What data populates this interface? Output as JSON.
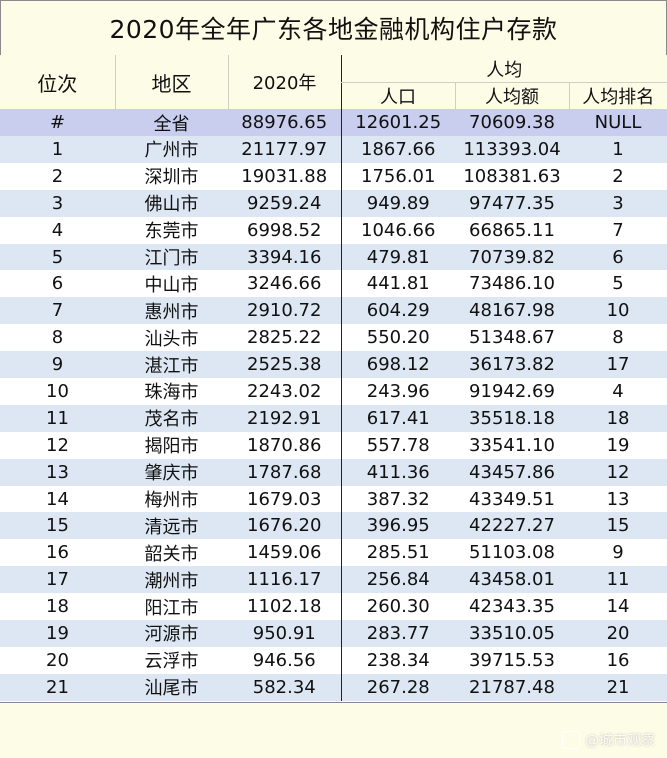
{
  "title": "2020年全年广东各地金融机构住户存款",
  "headers": {
    "rank": "位次",
    "region": "地区",
    "year": "2020年",
    "per_capita_group": "人均",
    "population": "人口",
    "per_capita_amount": "人均额",
    "per_capita_rank": "人均排名"
  },
  "total_row": {
    "rank": "#",
    "region": "全省",
    "deposit": "88976.65",
    "population": "12601.25",
    "per_capita": "70609.38",
    "per_capita_rank": "NULL"
  },
  "rows": [
    {
      "rank": "1",
      "region": "广州市",
      "deposit": "21177.97",
      "population": "1867.66",
      "per_capita": "113393.04",
      "per_capita_rank": "1"
    },
    {
      "rank": "2",
      "region": "深圳市",
      "deposit": "19031.88",
      "population": "1756.01",
      "per_capita": "108381.63",
      "per_capita_rank": "2"
    },
    {
      "rank": "3",
      "region": "佛山市",
      "deposit": "9259.24",
      "population": "949.89",
      "per_capita": "97477.35",
      "per_capita_rank": "3"
    },
    {
      "rank": "4",
      "region": "东莞市",
      "deposit": "6998.52",
      "population": "1046.66",
      "per_capita": "66865.11",
      "per_capita_rank": "7"
    },
    {
      "rank": "5",
      "region": "江门市",
      "deposit": "3394.16",
      "population": "479.81",
      "per_capita": "70739.82",
      "per_capita_rank": "6"
    },
    {
      "rank": "6",
      "region": "中山市",
      "deposit": "3246.66",
      "population": "441.81",
      "per_capita": "73486.10",
      "per_capita_rank": "5"
    },
    {
      "rank": "7",
      "region": "惠州市",
      "deposit": "2910.72",
      "population": "604.29",
      "per_capita": "48167.98",
      "per_capita_rank": "10"
    },
    {
      "rank": "8",
      "region": "汕头市",
      "deposit": "2825.22",
      "population": "550.20",
      "per_capita": "51348.67",
      "per_capita_rank": "8"
    },
    {
      "rank": "9",
      "region": "湛江市",
      "deposit": "2525.38",
      "population": "698.12",
      "per_capita": "36173.82",
      "per_capita_rank": "17"
    },
    {
      "rank": "10",
      "region": "珠海市",
      "deposit": "2243.02",
      "population": "243.96",
      "per_capita": "91942.69",
      "per_capita_rank": "4"
    },
    {
      "rank": "11",
      "region": "茂名市",
      "deposit": "2192.91",
      "population": "617.41",
      "per_capita": "35518.18",
      "per_capita_rank": "18"
    },
    {
      "rank": "12",
      "region": "揭阳市",
      "deposit": "1870.86",
      "population": "557.78",
      "per_capita": "33541.10",
      "per_capita_rank": "19"
    },
    {
      "rank": "13",
      "region": "肇庆市",
      "deposit": "1787.68",
      "population": "411.36",
      "per_capita": "43457.86",
      "per_capita_rank": "12"
    },
    {
      "rank": "14",
      "region": "梅州市",
      "deposit": "1679.03",
      "population": "387.32",
      "per_capita": "43349.51",
      "per_capita_rank": "13"
    },
    {
      "rank": "15",
      "region": "清远市",
      "deposit": "1676.20",
      "population": "396.95",
      "per_capita": "42227.27",
      "per_capita_rank": "15"
    },
    {
      "rank": "16",
      "region": "韶关市",
      "deposit": "1459.06",
      "population": "285.51",
      "per_capita": "51103.08",
      "per_capita_rank": "9"
    },
    {
      "rank": "17",
      "region": "潮州市",
      "deposit": "1116.17",
      "population": "256.84",
      "per_capita": "43458.01",
      "per_capita_rank": "11"
    },
    {
      "rank": "18",
      "region": "阳江市",
      "deposit": "1102.18",
      "population": "260.30",
      "per_capita": "42343.35",
      "per_capita_rank": "14"
    },
    {
      "rank": "19",
      "region": "河源市",
      "deposit": "950.91",
      "population": "283.77",
      "per_capita": "33510.05",
      "per_capita_rank": "20"
    },
    {
      "rank": "20",
      "region": "云浮市",
      "deposit": "946.56",
      "population": "238.34",
      "per_capita": "39715.53",
      "per_capita_rank": "16"
    },
    {
      "rank": "21",
      "region": "汕尾市",
      "deposit": "582.34",
      "population": "267.28",
      "per_capita": "21787.48",
      "per_capita_rank": "21"
    }
  ],
  "watermark": "@城市观察"
}
